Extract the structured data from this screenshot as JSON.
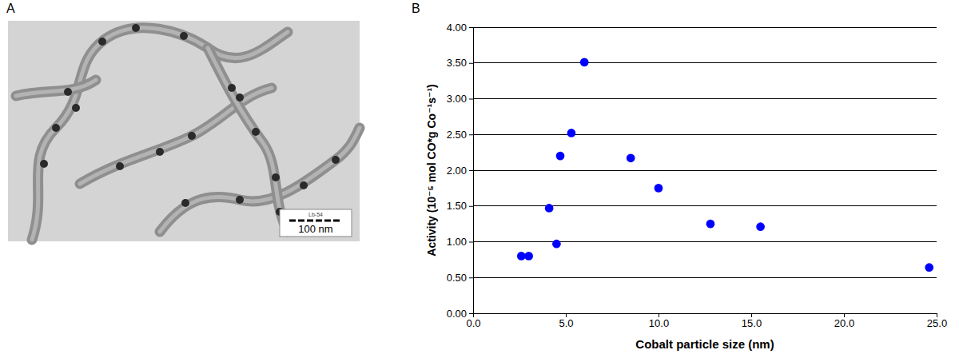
{
  "figure": {
    "panel_a": {
      "letter": "A",
      "scale_bar_label": "100 nm",
      "sample_label": "Lb-54"
    },
    "panel_b": {
      "letter": "B"
    }
  },
  "chart_data": {
    "type": "scatter",
    "x_label": "Cobalt particle size (nm)",
    "y_label": "Activity (10⁻⁵ mol CO*g Co⁻¹s⁻¹)",
    "x": [
      2.6,
      3.0,
      4.1,
      4.5,
      4.7,
      5.3,
      6.0,
      8.5,
      10.0,
      12.8,
      15.5,
      24.6
    ],
    "values": [
      0.8,
      0.8,
      1.47,
      0.97,
      2.2,
      2.52,
      3.51,
      2.17,
      1.75,
      1.25,
      1.21,
      0.64
    ],
    "color": "#0000ff",
    "marker": "circle",
    "xlim": [
      0,
      25
    ],
    "ylim": [
      0,
      4
    ],
    "xticks": [
      {
        "value": 0,
        "label": "0.0"
      },
      {
        "value": 5,
        "label": "5.0"
      },
      {
        "value": 10,
        "label": "10.0"
      },
      {
        "value": 15,
        "label": "15.0"
      },
      {
        "value": 20,
        "label": "20.0"
      },
      {
        "value": 25,
        "label": "25.0"
      }
    ],
    "yticks": [
      {
        "value": 0,
        "label": "0.00"
      },
      {
        "value": 0.5,
        "label": "0.50"
      },
      {
        "value": 1,
        "label": "1.00"
      },
      {
        "value": 1.5,
        "label": "1.50"
      },
      {
        "value": 2,
        "label": "2.00"
      },
      {
        "value": 2.5,
        "label": "2.50"
      },
      {
        "value": 3,
        "label": "3.00"
      },
      {
        "value": 3.5,
        "label": "3.50"
      },
      {
        "value": 4,
        "label": "4.00"
      }
    ],
    "grid": true
  }
}
